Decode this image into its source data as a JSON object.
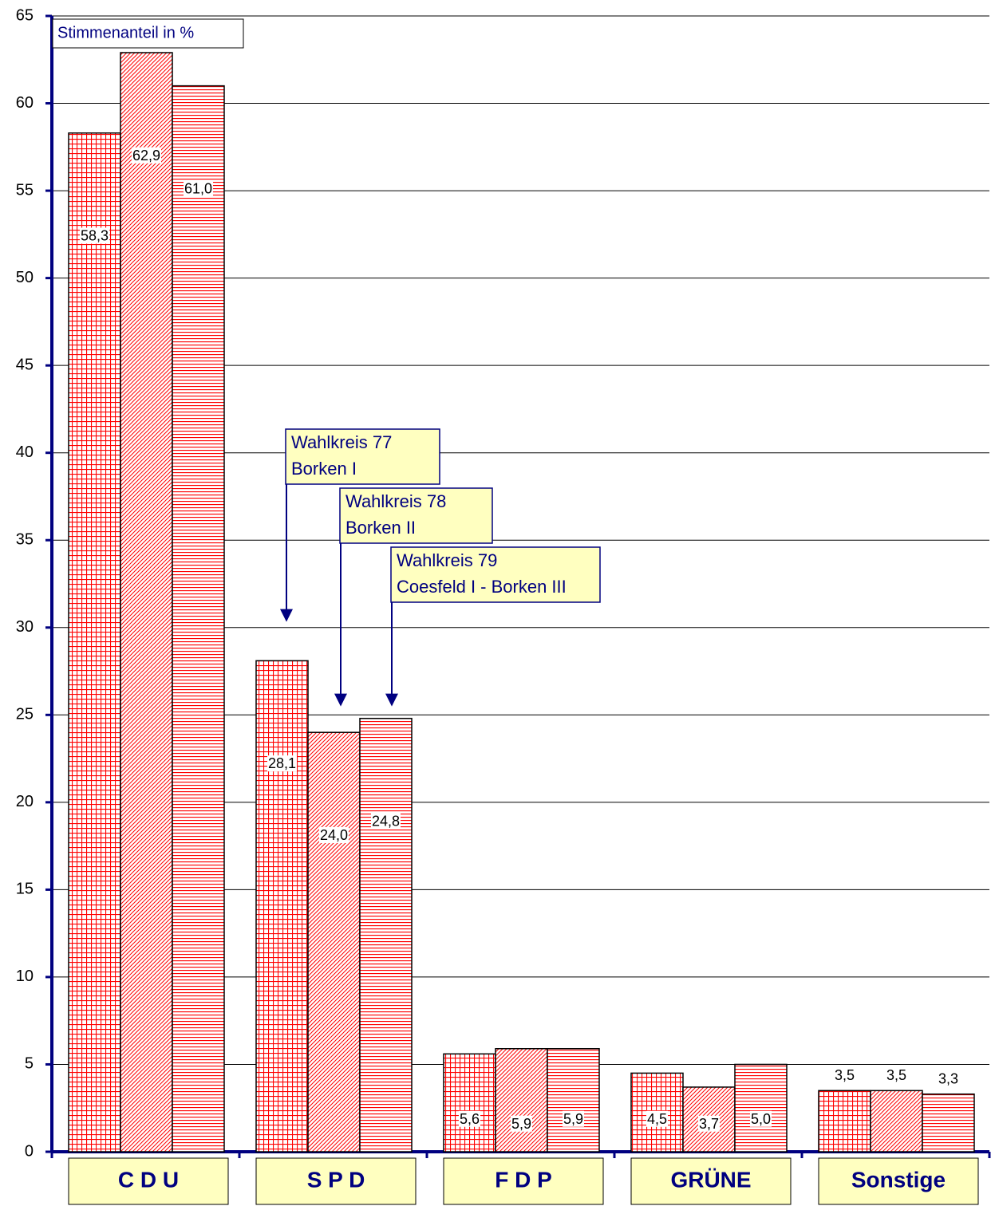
{
  "chart_data": {
    "type": "bar",
    "title": "Stimmenanteil in %",
    "categories": [
      "C D U",
      "S P D",
      "F D P",
      "GRÜNE",
      "Sonstige"
    ],
    "series": [
      {
        "name": [
          "Wahlkreis 77",
          "Borken I"
        ],
        "color": "#ff0000",
        "values": [
          58.3,
          28.1,
          5.6,
          4.5,
          3.5
        ],
        "value_labels": [
          "58,3",
          "28,1",
          "5,6",
          "4,5",
          "3,5"
        ]
      },
      {
        "name": [
          "Wahlkreis 78",
          "Borken II"
        ],
        "color": "#ff0000",
        "values": [
          62.9,
          24.0,
          5.9,
          3.7,
          3.5
        ],
        "value_labels": [
          "62,9",
          "24,0",
          "5,9",
          "3,7",
          "3,5"
        ]
      },
      {
        "name": [
          "Wahlkreis 79",
          "Coesfeld I - Borken III"
        ],
        "color": "#ff0000",
        "values": [
          61.0,
          24.8,
          5.9,
          5.0,
          3.3
        ],
        "value_labels": [
          "61,0",
          "24,8",
          "5,9",
          "5,0",
          "3,3"
        ]
      }
    ],
    "ylim": [
      0,
      65
    ],
    "yticks": [
      0,
      5,
      10,
      15,
      20,
      25,
      30,
      35,
      40,
      45,
      50,
      55,
      60,
      65
    ],
    "grid": true
  }
}
